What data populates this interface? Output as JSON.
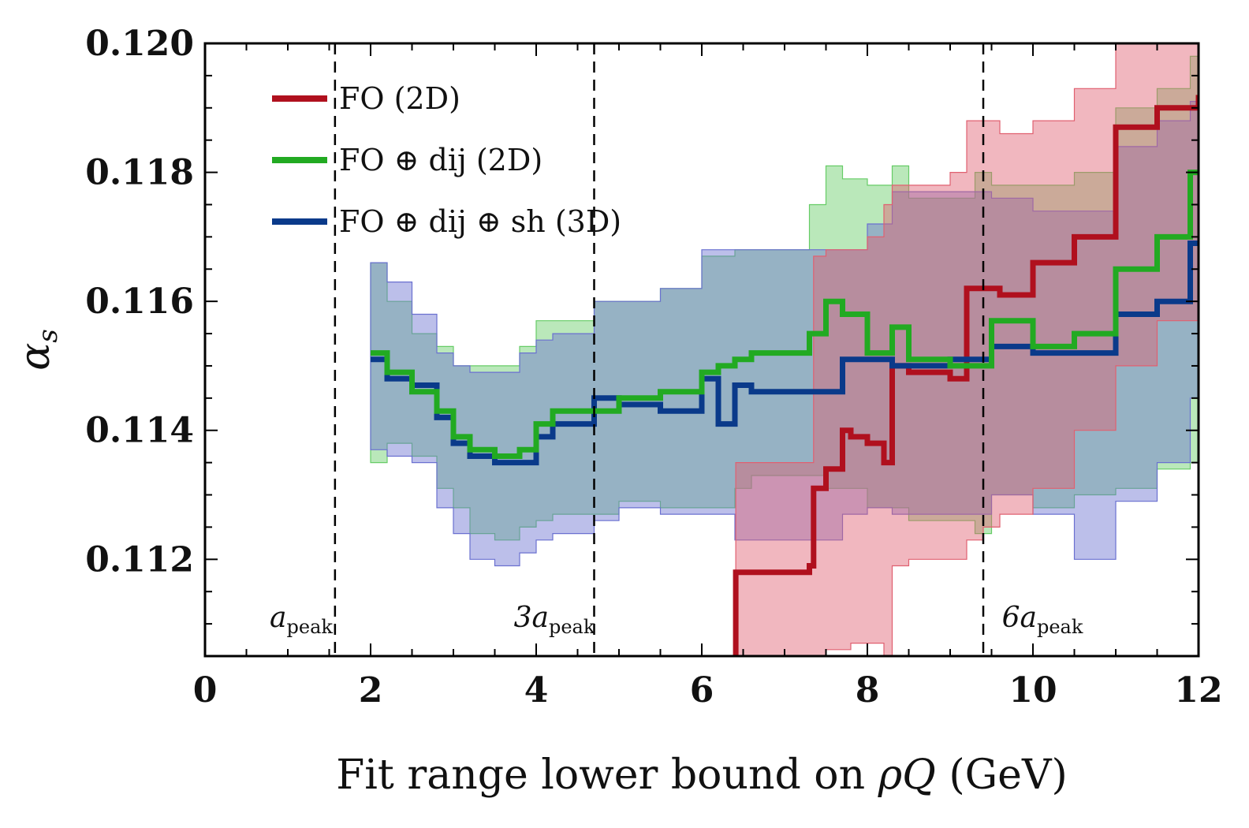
{
  "chart_data": {
    "type": "line",
    "title": "",
    "xlabel_parts": [
      "Fit range lower bound on ",
      "ρQ",
      " (GeV)"
    ],
    "ylabel": "α",
    "ylabel_sub": "s",
    "xlim": [
      0,
      12
    ],
    "ylim": [
      0.1105,
      0.12
    ],
    "xticks": [
      0,
      2,
      4,
      6,
      8,
      10,
      12
    ],
    "yticks": [
      0.112,
      0.114,
      0.116,
      0.118,
      0.12
    ],
    "xtick_labels": [
      "0",
      "2",
      "4",
      "6",
      "8",
      "10",
      "12"
    ],
    "ytick_labels": [
      "0.112",
      "0.114",
      "0.116",
      "0.118",
      "0.120"
    ],
    "legend_position": "top-left",
    "vlines": [
      {
        "x": 1.57,
        "label": "a",
        "sub": "peak",
        "style": "dashed"
      },
      {
        "x": 4.7,
        "label": "3a",
        "sub": "peak",
        "style": "dashed"
      },
      {
        "x": 9.4,
        "label": "6a",
        "sub": "peak",
        "style": "dashed"
      }
    ],
    "series": [
      {
        "name": "FO (2D)",
        "color": "#b0101e",
        "band_color": "#e06070",
        "x": [
          6.4,
          6.41,
          6.6,
          6.8,
          7.0,
          7.3,
          7.35,
          7.5,
          7.7,
          7.8,
          8.0,
          8.2,
          8.3,
          8.5,
          9.0,
          9.2,
          9.4,
          9.6,
          10.0,
          10.5,
          11.0,
          11.5,
          12.0
        ],
        "y": [
          0.1105,
          0.1118,
          0.1118,
          0.1118,
          0.1118,
          0.1119,
          0.1131,
          0.1134,
          0.114,
          0.1139,
          0.1138,
          0.1135,
          0.115,
          0.1149,
          0.1148,
          0.1162,
          0.1162,
          0.1161,
          0.1166,
          0.117,
          0.1187,
          0.119,
          0.1192
        ],
        "lower": [
          0.1105,
          0.1105,
          0.1105,
          0.1105,
          0.1105,
          0.1105,
          0.1105,
          0.1106,
          0.1106,
          0.1107,
          0.1107,
          0.1105,
          0.1119,
          0.112,
          0.112,
          0.1123,
          0.1125,
          0.1127,
          0.1131,
          0.114,
          0.115,
          0.1157,
          0.116
        ],
        "upper": [
          0.1115,
          0.1135,
          0.1135,
          0.1135,
          0.1135,
          0.1135,
          0.1167,
          0.1168,
          0.1168,
          0.1168,
          0.117,
          0.1175,
          0.1178,
          0.1178,
          0.118,
          0.1188,
          0.1188,
          0.1186,
          0.1188,
          0.1193,
          0.1205,
          0.1205,
          0.1205
        ]
      },
      {
        "name": "FO ⊕ dij (2D)",
        "color": "#22aa22",
        "band_color": "#66cc66",
        "x": [
          2.0,
          2.2,
          2.5,
          2.8,
          3.0,
          3.2,
          3.5,
          3.8,
          4.0,
          4.2,
          4.5,
          4.7,
          5.0,
          5.5,
          6.0,
          6.2,
          6.4,
          6.6,
          7.0,
          7.3,
          7.5,
          7.7,
          8.0,
          8.3,
          8.5,
          9.0,
          9.3,
          9.5,
          10.0,
          10.5,
          11.0,
          11.5,
          11.9
        ],
        "y": [
          0.1152,
          0.1149,
          0.1146,
          0.1143,
          0.1139,
          0.1137,
          0.1136,
          0.1137,
          0.1141,
          0.1143,
          0.1143,
          0.1143,
          0.1145,
          0.1146,
          0.1149,
          0.115,
          0.1151,
          0.1152,
          0.1152,
          0.1155,
          0.116,
          0.1158,
          0.1152,
          0.1156,
          0.1151,
          0.115,
          0.115,
          0.1157,
          0.1153,
          0.1155,
          0.1165,
          0.117,
          0.118
        ],
        "lower": [
          0.1135,
          0.1138,
          0.1136,
          0.1131,
          0.1128,
          0.1124,
          0.1123,
          0.1125,
          0.1126,
          0.1127,
          0.1127,
          0.1127,
          0.1129,
          0.1128,
          0.1128,
          0.1128,
          0.1131,
          0.1133,
          0.1133,
          0.1133,
          0.1131,
          0.1131,
          0.1128,
          0.1128,
          0.1126,
          0.1126,
          0.1124,
          0.113,
          0.1128,
          0.113,
          0.1131,
          0.1134,
          0.1135
        ],
        "upper": [
          0.1166,
          0.116,
          0.1155,
          0.1153,
          0.115,
          0.115,
          0.115,
          0.1153,
          0.1157,
          0.1157,
          0.1157,
          0.116,
          0.116,
          0.1162,
          0.1167,
          0.1167,
          0.1168,
          0.1168,
          0.1168,
          0.1175,
          0.1181,
          0.1179,
          0.1178,
          0.1181,
          0.1176,
          0.1176,
          0.118,
          0.1178,
          0.1178,
          0.118,
          0.119,
          0.1193,
          0.1198
        ]
      },
      {
        "name": "FO ⊕ dij ⊕ sh (3D)",
        "color": "#0a3a8a",
        "band_color": "#6a70d0",
        "x": [
          2.0,
          2.2,
          2.5,
          2.8,
          3.0,
          3.2,
          3.5,
          3.8,
          4.0,
          4.2,
          4.5,
          4.7,
          5.0,
          5.5,
          6.0,
          6.2,
          6.4,
          6.6,
          7.0,
          7.5,
          7.7,
          8.0,
          8.3,
          8.5,
          9.0,
          9.3,
          9.5,
          10.0,
          10.5,
          11.0,
          11.5,
          11.9
        ],
        "y": [
          0.1151,
          0.1148,
          0.1147,
          0.1142,
          0.1138,
          0.1136,
          0.1135,
          0.1135,
          0.1139,
          0.1141,
          0.1141,
          0.1145,
          0.1144,
          0.1143,
          0.1148,
          0.1141,
          0.1147,
          0.1146,
          0.1146,
          0.1146,
          0.1151,
          0.1151,
          0.115,
          0.115,
          0.1151,
          0.1151,
          0.1153,
          0.1152,
          0.1152,
          0.1158,
          0.116,
          0.1169
        ],
        "lower": [
          0.1137,
          0.1136,
          0.1135,
          0.1128,
          0.1124,
          0.112,
          0.1119,
          0.1121,
          0.1123,
          0.1124,
          0.1124,
          0.1126,
          0.1128,
          0.1127,
          0.1127,
          0.1127,
          0.1123,
          0.1123,
          0.1123,
          0.1123,
          0.1127,
          0.1128,
          0.1127,
          0.1127,
          0.1127,
          0.1127,
          0.113,
          0.1127,
          0.112,
          0.1129,
          0.1135,
          0.1145
        ],
        "upper": [
          0.1166,
          0.1163,
          0.1158,
          0.1152,
          0.115,
          0.1149,
          0.1149,
          0.1152,
          0.1154,
          0.1155,
          0.1155,
          0.116,
          0.116,
          0.1162,
          0.1168,
          0.1168,
          0.1168,
          0.1168,
          0.1168,
          0.1168,
          0.1168,
          0.1172,
          0.1177,
          0.1177,
          0.1177,
          0.1177,
          0.1176,
          0.1174,
          0.1174,
          0.1184,
          0.1188,
          0.1191
        ]
      }
    ]
  }
}
